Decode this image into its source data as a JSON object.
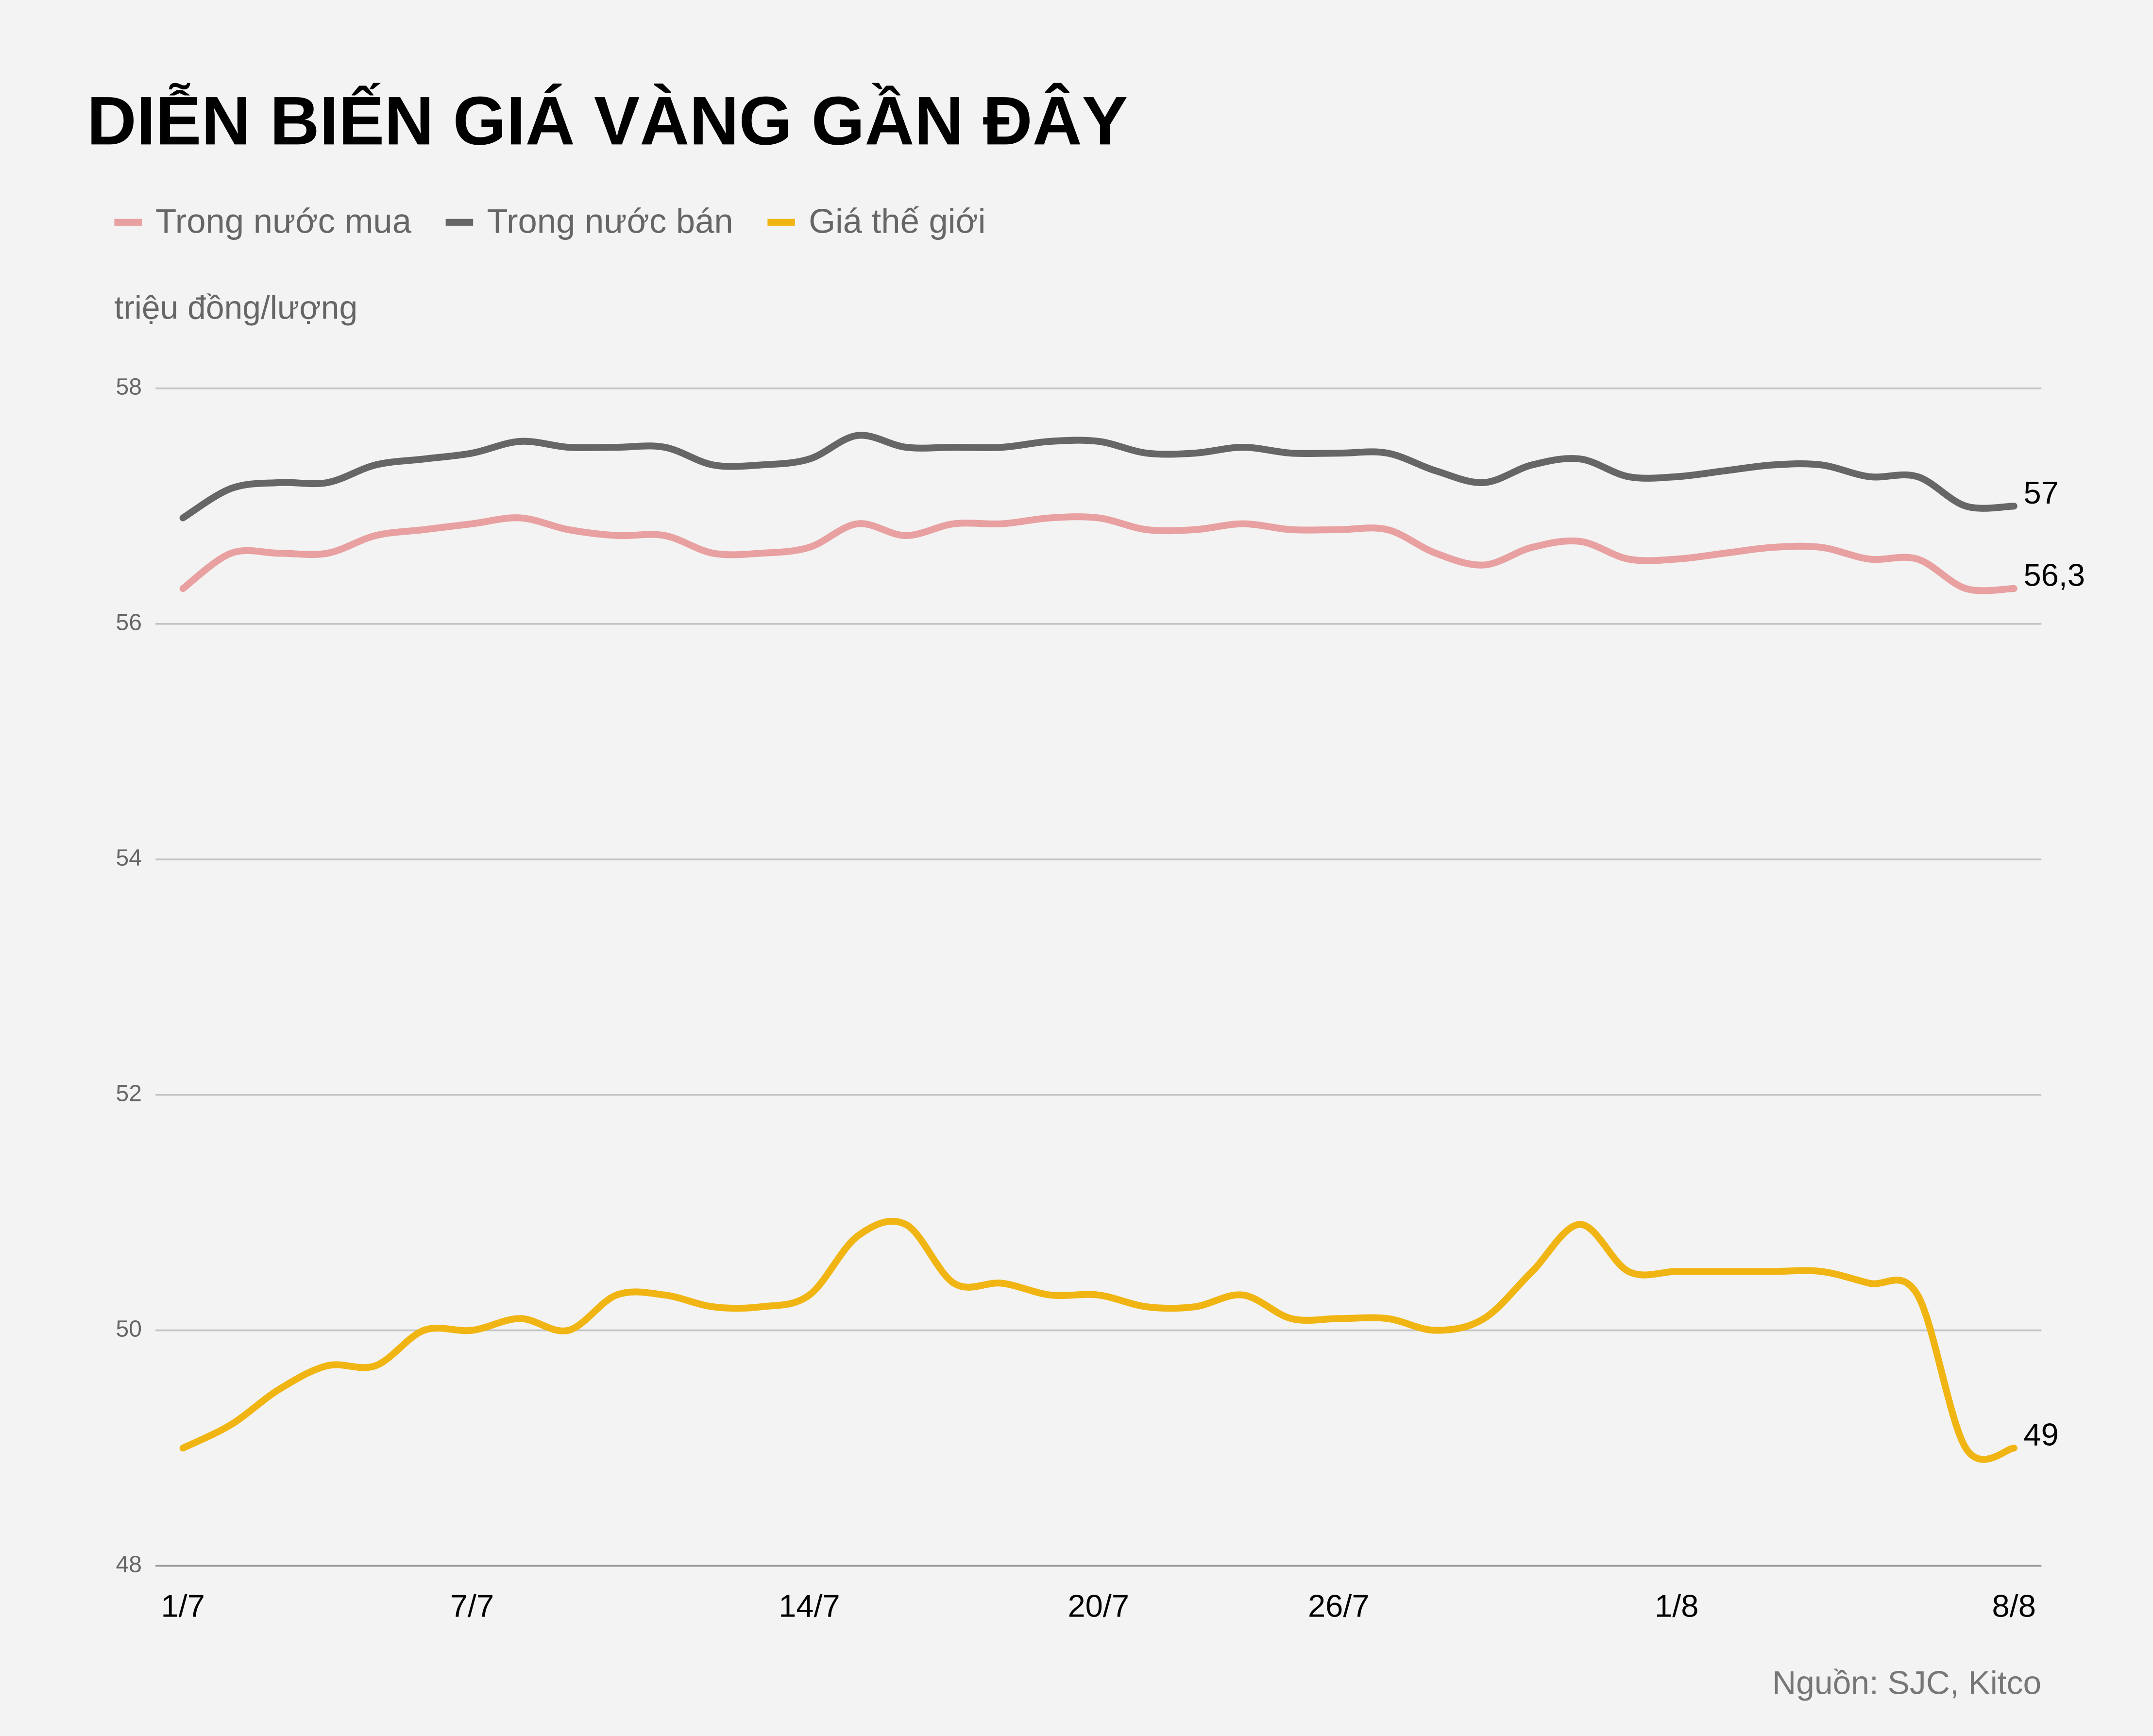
{
  "chart_data": {
    "type": "line",
    "title": "DIỄN BIẾN GIÁ VÀNG GẦN ĐÂY",
    "y_label": "triệu đồng/lượng",
    "source": "Nguồn: SJC, Kitco",
    "categories": [
      "1/7",
      null,
      null,
      null,
      null,
      null,
      "7/7",
      null,
      null,
      null,
      null,
      null,
      null,
      "14/7",
      null,
      null,
      null,
      null,
      null,
      "20/7",
      null,
      null,
      null,
      null,
      "26/7",
      null,
      null,
      null,
      null,
      null,
      null,
      "1/8",
      null,
      null,
      null,
      null,
      null,
      null,
      "8/8"
    ],
    "series": [
      {
        "name": "Trong nước mua",
        "color": "#e8a0a0",
        "values": [
          56.3,
          56.6,
          56.6,
          56.6,
          56.75,
          56.8,
          56.85,
          56.9,
          56.8,
          56.75,
          56.75,
          56.6,
          56.6,
          56.65,
          56.85,
          56.75,
          56.85,
          56.85,
          56.9,
          56.9,
          56.8,
          56.8,
          56.85,
          56.8,
          56.8,
          56.8,
          56.6,
          56.5,
          56.65,
          56.7,
          56.55,
          56.55,
          56.6,
          56.65,
          56.65,
          56.55,
          56.55,
          56.3,
          56.3
        ],
        "value_labels": [
          null,
          null,
          null,
          null,
          null,
          null,
          null,
          null,
          null,
          null,
          null,
          null,
          null,
          null,
          null,
          null,
          null,
          null,
          null,
          null,
          null,
          null,
          null,
          null,
          null,
          null,
          null,
          null,
          null,
          null,
          null,
          null,
          null,
          null,
          null,
          null,
          null,
          null,
          "56,3"
        ]
      },
      {
        "name": "Trong nước bán",
        "color": "#666666",
        "values": [
          56.9,
          57.15,
          57.2,
          57.2,
          57.35,
          57.4,
          57.45,
          57.55,
          57.5,
          57.5,
          57.5,
          57.35,
          57.35,
          57.4,
          57.6,
          57.5,
          57.5,
          57.5,
          57.55,
          57.55,
          57.45,
          57.45,
          57.5,
          57.45,
          57.45,
          57.45,
          57.3,
          57.2,
          57.35,
          57.4,
          57.25,
          57.25,
          57.3,
          57.35,
          57.35,
          57.25,
          57.25,
          57.0,
          57.0
        ],
        "value_labels": [
          null,
          null,
          null,
          null,
          null,
          null,
          null,
          null,
          null,
          null,
          null,
          null,
          null,
          null,
          null,
          null,
          null,
          null,
          null,
          null,
          null,
          null,
          null,
          null,
          null,
          null,
          null,
          null,
          null,
          null,
          null,
          null,
          null,
          null,
          null,
          null,
          null,
          null,
          "57"
        ]
      },
      {
        "name": "Giá thế giới",
        "color": "#f0b512",
        "values": [
          49.0,
          49.2,
          49.5,
          49.7,
          49.7,
          50.0,
          50.0,
          50.1,
          50.0,
          50.3,
          50.3,
          50.2,
          50.2,
          50.3,
          50.8,
          50.9,
          50.4,
          50.4,
          50.3,
          50.3,
          50.2,
          50.2,
          50.3,
          50.1,
          50.1,
          50.1,
          50.0,
          50.1,
          50.5,
          50.9,
          50.5,
          50.5,
          50.5,
          50.5,
          50.5,
          50.4,
          50.3,
          49.0,
          49.0
        ],
        "value_labels": [
          null,
          null,
          null,
          null,
          null,
          null,
          null,
          null,
          null,
          null,
          null,
          null,
          null,
          null,
          null,
          null,
          null,
          null,
          null,
          null,
          null,
          null,
          null,
          null,
          null,
          null,
          null,
          null,
          null,
          null,
          null,
          null,
          null,
          null,
          null,
          null,
          null,
          null,
          "49"
        ]
      }
    ],
    "ylim": [
      48,
      58
    ],
    "yticks": [
      48,
      50,
      52,
      54,
      56,
      58
    ],
    "grid": true
  }
}
